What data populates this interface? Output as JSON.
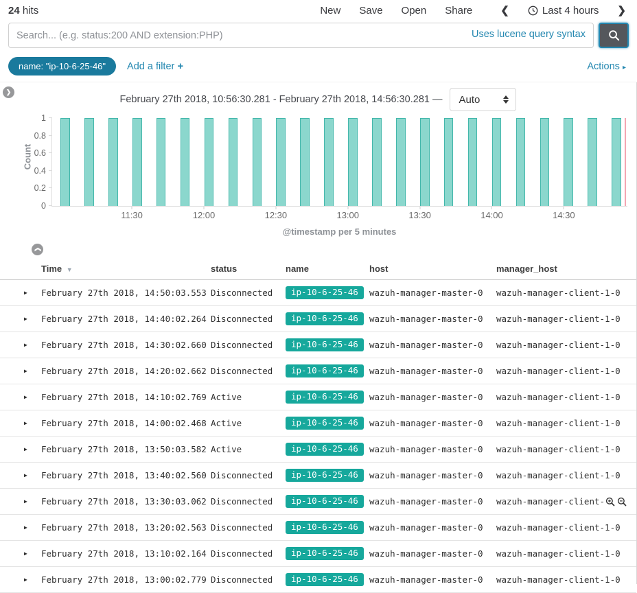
{
  "topnav": {
    "hits_count": "24",
    "hits_label": "hits",
    "menu": {
      "new": "New",
      "save": "Save",
      "open": "Open",
      "share": "Share"
    },
    "prev_icon": "❮",
    "next_icon": "❯",
    "time_filter_label": "Last 4 hours"
  },
  "search": {
    "placeholder": "Search... (e.g. status:200 AND extension:PHP)",
    "syntax_link": "Uses lucene query syntax",
    "button_icon": "magnifier-icon"
  },
  "filter_bar": {
    "pill_label": "name: \"ip-10-6-25-46\"",
    "add_filter_label": "Add a filter",
    "add_filter_plus": "+",
    "actions_label": "Actions",
    "actions_arrow": "▸"
  },
  "time_header": {
    "range_text": "February 27th 2018, 10:56:30.281 - February 27th 2018, 14:56:30.281 —",
    "interval_value": "Auto"
  },
  "chart_data": {
    "type": "bar",
    "title": "",
    "ylabel": "Count",
    "xlabel": "@timestamp per 5 minutes",
    "ylim": [
      0,
      1
    ],
    "yticks": [
      0,
      0.2,
      0.4,
      0.6,
      0.8,
      1
    ],
    "ytick_labels": [
      "0",
      "0.2",
      "0.4",
      "0.6",
      "0.8",
      "1"
    ],
    "xticks": [
      "11:30",
      "12:00",
      "12:30",
      "13:00",
      "13:30",
      "14:00",
      "14:30"
    ],
    "time_range_start": "10:56:30",
    "time_range_end": "14:56:30",
    "x": [
      "11:00",
      "11:10",
      "11:20",
      "11:30",
      "11:40",
      "11:50",
      "12:00",
      "12:10",
      "12:20",
      "12:30",
      "12:40",
      "12:50",
      "13:00",
      "13:10",
      "13:20",
      "13:30",
      "13:40",
      "13:50",
      "14:00",
      "14:10",
      "14:20",
      "14:30",
      "14:40",
      "14:50"
    ],
    "values": [
      1,
      1,
      1,
      1,
      1,
      1,
      1,
      1,
      1,
      1,
      1,
      1,
      1,
      1,
      1,
      1,
      1,
      1,
      1,
      1,
      1,
      1,
      1,
      1
    ],
    "bar_color": "#8bd7cd",
    "bar_border_color": "#43b7ab",
    "end_marker_color": "#f4a6b2",
    "legend": "off",
    "grid": "off"
  },
  "table": {
    "columns": [
      "Time",
      "status",
      "name",
      "host",
      "manager_host"
    ],
    "rows": [
      {
        "time": "February 27th 2018, 14:50:03.553",
        "status": "Disconnected",
        "name": "ip-10-6-25-46",
        "host": "wazuh-manager-master-0",
        "manager_host": "wazuh-manager-client-1-0",
        "hovered": false
      },
      {
        "time": "February 27th 2018, 14:40:02.264",
        "status": "Disconnected",
        "name": "ip-10-6-25-46",
        "host": "wazuh-manager-master-0",
        "manager_host": "wazuh-manager-client-1-0",
        "hovered": false
      },
      {
        "time": "February 27th 2018, 14:30:02.660",
        "status": "Disconnected",
        "name": "ip-10-6-25-46",
        "host": "wazuh-manager-master-0",
        "manager_host": "wazuh-manager-client-1-0",
        "hovered": false
      },
      {
        "time": "February 27th 2018, 14:20:02.662",
        "status": "Disconnected",
        "name": "ip-10-6-25-46",
        "host": "wazuh-manager-master-0",
        "manager_host": "wazuh-manager-client-1-0",
        "hovered": false
      },
      {
        "time": "February 27th 2018, 14:10:02.769",
        "status": "Active",
        "name": "ip-10-6-25-46",
        "host": "wazuh-manager-master-0",
        "manager_host": "wazuh-manager-client-1-0",
        "hovered": false
      },
      {
        "time": "February 27th 2018, 14:00:02.468",
        "status": "Active",
        "name": "ip-10-6-25-46",
        "host": "wazuh-manager-master-0",
        "manager_host": "wazuh-manager-client-1-0",
        "hovered": false
      },
      {
        "time": "February 27th 2018, 13:50:03.582",
        "status": "Active",
        "name": "ip-10-6-25-46",
        "host": "wazuh-manager-master-0",
        "manager_host": "wazuh-manager-client-1-0",
        "hovered": false
      },
      {
        "time": "February 27th 2018, 13:40:02.560",
        "status": "Disconnected",
        "name": "ip-10-6-25-46",
        "host": "wazuh-manager-master-0",
        "manager_host": "wazuh-manager-client-1-0",
        "hovered": false
      },
      {
        "time": "February 27th 2018, 13:30:03.062",
        "status": "Disconnected",
        "name": "ip-10-6-25-46",
        "host": "wazuh-manager-master-0",
        "manager_host": "wazuh-manager-client-1-0",
        "hovered": true
      },
      {
        "time": "February 27th 2018, 13:20:02.563",
        "status": "Disconnected",
        "name": "ip-10-6-25-46",
        "host": "wazuh-manager-master-0",
        "manager_host": "wazuh-manager-client-1-0",
        "hovered": false
      },
      {
        "time": "February 27th 2018, 13:10:02.164",
        "status": "Disconnected",
        "name": "ip-10-6-25-46",
        "host": "wazuh-manager-master-0",
        "manager_host": "wazuh-manager-client-1-0",
        "hovered": false
      },
      {
        "time": "February 27th 2018, 13:00:02.779",
        "status": "Disconnected",
        "name": "ip-10-6-25-46",
        "host": "wazuh-manager-master-0",
        "manager_host": "wazuh-manager-client-1-0",
        "hovered": false
      }
    ]
  },
  "colors": {
    "accent_blue": "#2387b0",
    "pill_blue": "#1a7a9d",
    "badge_teal": "#16a89c",
    "bar_fill": "#8bd7cd",
    "bar_border": "#43b7ab",
    "end_marker_pink": "#f4a6b2"
  }
}
